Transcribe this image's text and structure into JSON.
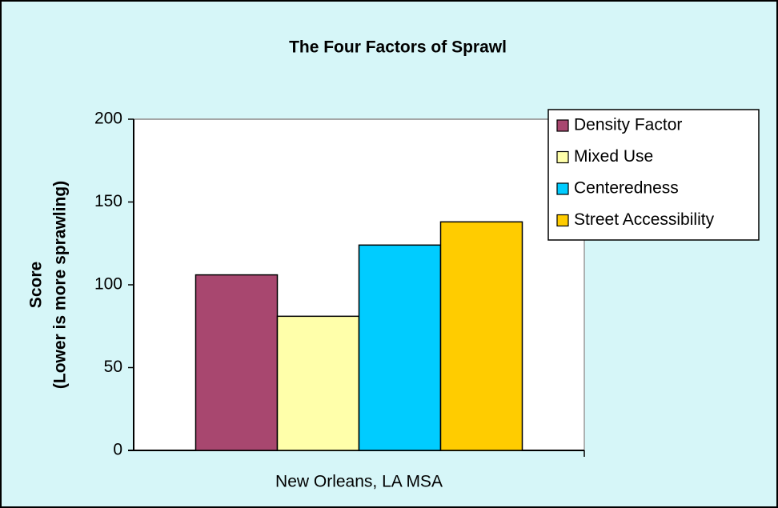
{
  "chart_data": {
    "type": "bar",
    "title": "The Four Factors of Sprawl",
    "y_label": [
      "Score",
      "(Lower is more sprawling)"
    ],
    "categories": [
      "New Orleans, LA MSA"
    ],
    "series": [
      {
        "name": "Density Factor",
        "color": "#a8476f",
        "values": [
          106
        ]
      },
      {
        "name": "Mixed Use",
        "color": "#ffffaa",
        "values": [
          81
        ]
      },
      {
        "name": "Centeredness",
        "color": "#00ccff",
        "values": [
          124
        ]
      },
      {
        "name": "Street Accessibility",
        "color": "#ffcc00",
        "values": [
          138
        ]
      }
    ],
    "ylim": [
      0,
      200
    ],
    "yticks": [
      0,
      50,
      100,
      150,
      200
    ],
    "grid": true,
    "legend": "right"
  }
}
